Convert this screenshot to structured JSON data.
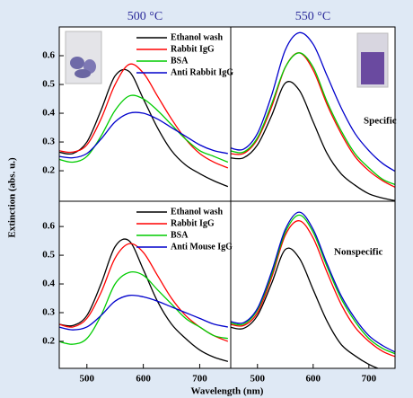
{
  "chart_data": [
    {
      "type": "line",
      "title": "500 °C",
      "y_label": "Extinction (abs. u.)",
      "x": [
        450,
        475,
        500,
        525,
        550,
        575,
        600,
        625,
        650,
        675,
        700,
        725,
        750
      ],
      "xlim": [
        451,
        755
      ],
      "ylim": [
        0.094,
        0.7
      ],
      "yticks": [
        0.2,
        0.3,
        0.4,
        0.5,
        0.6
      ],
      "series": [
        {
          "name": "Ethanol wash",
          "color": "#000000",
          "values": [
            0.265,
            0.26,
            0.3,
            0.41,
            0.53,
            0.545,
            0.45,
            0.35,
            0.27,
            0.22,
            0.19,
            0.165,
            0.145
          ]
        },
        {
          "name": "Rabbit IgG",
          "color": "#ff0000",
          "values": [
            0.27,
            0.265,
            0.29,
            0.38,
            0.5,
            0.57,
            0.54,
            0.46,
            0.38,
            0.31,
            0.26,
            0.23,
            0.21
          ]
        },
        {
          "name": "BSA",
          "color": "#00cc00",
          "values": [
            0.24,
            0.23,
            0.25,
            0.32,
            0.41,
            0.46,
            0.45,
            0.41,
            0.36,
            0.31,
            0.27,
            0.25,
            0.23
          ]
        },
        {
          "name": "Anti Rabbit IgG",
          "color": "#0000cc",
          "values": [
            0.25,
            0.245,
            0.26,
            0.31,
            0.37,
            0.4,
            0.4,
            0.38,
            0.35,
            0.32,
            0.29,
            0.27,
            0.26
          ]
        }
      ]
    },
    {
      "type": "line",
      "title": "550 °C",
      "annotation": "Specific",
      "x": [
        450,
        475,
        500,
        525,
        550,
        575,
        600,
        625,
        650,
        675,
        700,
        725,
        750
      ],
      "xlim": [
        452,
        747
      ],
      "ylim": [
        0.094,
        0.7
      ],
      "series": [
        {
          "color": "#000000",
          "values": [
            0.245,
            0.245,
            0.29,
            0.39,
            0.505,
            0.48,
            0.37,
            0.26,
            0.19,
            0.15,
            0.12,
            0.105,
            0.095
          ]
        },
        {
          "color": "#ff0000",
          "values": [
            0.26,
            0.26,
            0.31,
            0.42,
            0.56,
            0.61,
            0.55,
            0.43,
            0.33,
            0.25,
            0.2,
            0.165,
            0.14
          ]
        },
        {
          "color": "#00cc00",
          "values": [
            0.27,
            0.265,
            0.315,
            0.43,
            0.56,
            0.61,
            0.56,
            0.44,
            0.34,
            0.26,
            0.21,
            0.17,
            0.15
          ]
        },
        {
          "color": "#0000cc",
          "values": [
            0.28,
            0.275,
            0.33,
            0.46,
            0.62,
            0.68,
            0.64,
            0.53,
            0.42,
            0.33,
            0.27,
            0.225,
            0.195
          ]
        }
      ]
    },
    {
      "type": "line",
      "x_label": "Wavelength (nm)",
      "x": [
        450,
        475,
        500,
        525,
        550,
        575,
        600,
        625,
        650,
        675,
        700,
        725,
        750
      ],
      "xlim": [
        451,
        755
      ],
      "xticks": [
        500,
        600,
        700
      ],
      "ylim": [
        0.106,
        0.688
      ],
      "yticks": [
        0.2,
        0.3,
        0.4,
        0.5,
        0.6
      ],
      "series": [
        {
          "name": "Ethanol wash",
          "color": "#000000",
          "values": [
            0.26,
            0.255,
            0.29,
            0.4,
            0.53,
            0.55,
            0.45,
            0.34,
            0.26,
            0.21,
            0.17,
            0.145,
            0.13
          ]
        },
        {
          "name": "Rabbit IgG",
          "color": "#ff0000",
          "values": [
            0.26,
            0.25,
            0.28,
            0.37,
            0.49,
            0.54,
            0.51,
            0.43,
            0.35,
            0.29,
            0.25,
            0.22,
            0.2
          ]
        },
        {
          "name": "BSA",
          "color": "#00cc00",
          "values": [
            0.2,
            0.19,
            0.21,
            0.29,
            0.4,
            0.44,
            0.43,
            0.38,
            0.33,
            0.28,
            0.25,
            0.22,
            0.21
          ]
        },
        {
          "name": "Anti Mouse IgG",
          "color": "#0000cc",
          "values": [
            0.25,
            0.24,
            0.25,
            0.29,
            0.34,
            0.36,
            0.355,
            0.34,
            0.32,
            0.3,
            0.28,
            0.26,
            0.25
          ]
        }
      ]
    },
    {
      "type": "line",
      "annotation": "Nonspecific",
      "x": [
        450,
        475,
        500,
        525,
        550,
        575,
        600,
        625,
        650,
        675,
        700,
        725,
        750
      ],
      "xlim": [
        452,
        747
      ],
      "xticks": [
        500,
        600,
        700
      ],
      "ylim": [
        0.106,
        0.688
      ],
      "series": [
        {
          "color": "#000000",
          "values": [
            0.25,
            0.245,
            0.29,
            0.4,
            0.52,
            0.49,
            0.38,
            0.27,
            0.19,
            0.15,
            0.12,
            0.1,
            0.09
          ]
        },
        {
          "color": "#ff0000",
          "values": [
            0.26,
            0.255,
            0.3,
            0.42,
            0.57,
            0.62,
            0.56,
            0.44,
            0.33,
            0.25,
            0.2,
            0.165,
            0.145
          ]
        },
        {
          "color": "#00cc00",
          "values": [
            0.265,
            0.26,
            0.31,
            0.43,
            0.58,
            0.64,
            0.58,
            0.46,
            0.35,
            0.27,
            0.21,
            0.175,
            0.155
          ]
        },
        {
          "color": "#0000cc",
          "values": [
            0.27,
            0.265,
            0.315,
            0.44,
            0.59,
            0.65,
            0.59,
            0.47,
            0.36,
            0.28,
            0.22,
            0.185,
            0.16
          ]
        }
      ]
    }
  ]
}
